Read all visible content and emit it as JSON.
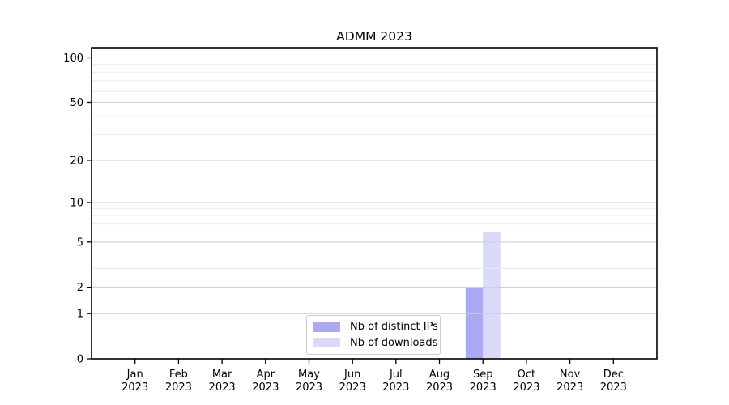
{
  "chart_data": {
    "type": "bar",
    "title": "ADMM 2023",
    "categories": [
      "Jan 2023",
      "Feb 2023",
      "Mar 2023",
      "Apr 2023",
      "May 2023",
      "Jun 2023",
      "Jul 2023",
      "Aug 2023",
      "Sep 2023",
      "Oct 2023",
      "Nov 2023",
      "Dec 2023"
    ],
    "series": [
      {
        "name": "Nb of distinct IPs",
        "color": "#aaaaf2",
        "values": [
          0,
          0,
          0,
          0,
          0,
          0,
          0,
          0,
          2,
          0,
          0,
          0
        ]
      },
      {
        "name": "Nb of downloads",
        "color": "#dadaf8",
        "values": [
          0,
          0,
          0,
          0,
          0,
          0,
          0,
          0,
          6,
          0,
          0,
          0
        ]
      }
    ],
    "xlabel": "",
    "ylabel": "",
    "y_scale": "log1p",
    "y_ticks": [
      0,
      1,
      2,
      5,
      10,
      20,
      50,
      100
    ],
    "y_minor_ticks": [
      3,
      4,
      6,
      7,
      8,
      9,
      30,
      40,
      60,
      70,
      80,
      90
    ],
    "ylim": [
      0,
      117
    ],
    "grid": "horizontal, drawn above bars",
    "legend_position": "lower center"
  }
}
